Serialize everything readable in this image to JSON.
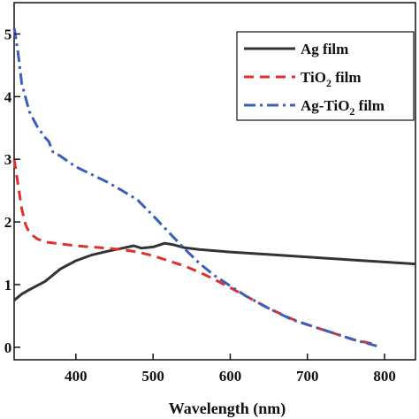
{
  "chart_data": {
    "type": "line",
    "xlabel": "Wavelength (nm)",
    "ylabel": "",
    "xlim": [
      320,
      840
    ],
    "ylim": [
      -0.2,
      5.5
    ],
    "x_ticks": [
      400,
      500,
      600,
      700,
      800
    ],
    "y_ticks": [
      0,
      1,
      2,
      3,
      4,
      5
    ],
    "y_tick_labels": [
      "0",
      "1",
      "2",
      "3",
      "4",
      "5"
    ],
    "grid": false,
    "legend_position": "top-right",
    "legend": [
      {
        "series": 0,
        "prefix": "Ag film",
        "sub": "",
        "suffix": ""
      },
      {
        "series": 1,
        "prefix": "TiO",
        "sub": "2",
        "suffix": " film"
      },
      {
        "series": 2,
        "prefix": "Ag-TiO",
        "sub": "2",
        "suffix": " film"
      }
    ],
    "series": [
      {
        "name": "Ag film",
        "color": "#333333",
        "style": "solid",
        "x": [
          320,
          330,
          340,
          360,
          380,
          400,
          420,
          440,
          460,
          475,
          485,
          500,
          515,
          525,
          540,
          560,
          600,
          650,
          700,
          750,
          800,
          840
        ],
        "y": [
          0.75,
          0.85,
          0.92,
          1.05,
          1.25,
          1.38,
          1.47,
          1.53,
          1.58,
          1.62,
          1.58,
          1.6,
          1.66,
          1.64,
          1.59,
          1.56,
          1.52,
          1.48,
          1.44,
          1.4,
          1.36,
          1.33
        ]
      },
      {
        "name": "TiO2 film",
        "color": "#e0302c",
        "style": "dashed",
        "x": [
          320,
          325,
          330,
          335,
          340,
          350,
          360,
          380,
          400,
          420,
          440,
          460,
          480,
          500,
          520,
          540,
          560,
          580,
          600,
          620,
          650,
          680,
          700,
          730,
          760,
          790
        ],
        "y": [
          3.0,
          2.6,
          2.2,
          1.95,
          1.82,
          1.73,
          1.68,
          1.65,
          1.62,
          1.6,
          1.58,
          1.56,
          1.52,
          1.46,
          1.38,
          1.3,
          1.2,
          1.08,
          0.95,
          0.82,
          0.62,
          0.45,
          0.36,
          0.24,
          0.12,
          0.04
        ]
      },
      {
        "name": "Ag-TiO2 film",
        "color": "#3a5fb8",
        "style": "dashdot",
        "x": [
          320,
          325,
          330,
          340,
          350,
          360,
          365,
          370,
          380,
          400,
          420,
          440,
          460,
          480,
          500,
          520,
          540,
          560,
          580,
          600,
          620,
          650,
          680,
          700,
          730,
          760,
          790
        ],
        "y": [
          5.1,
          4.7,
          4.2,
          3.75,
          3.52,
          3.35,
          3.28,
          3.12,
          3.05,
          2.88,
          2.76,
          2.64,
          2.5,
          2.35,
          2.1,
          1.84,
          1.58,
          1.34,
          1.14,
          0.98,
          0.82,
          0.62,
          0.44,
          0.36,
          0.24,
          0.12,
          0.02
        ]
      }
    ]
  }
}
